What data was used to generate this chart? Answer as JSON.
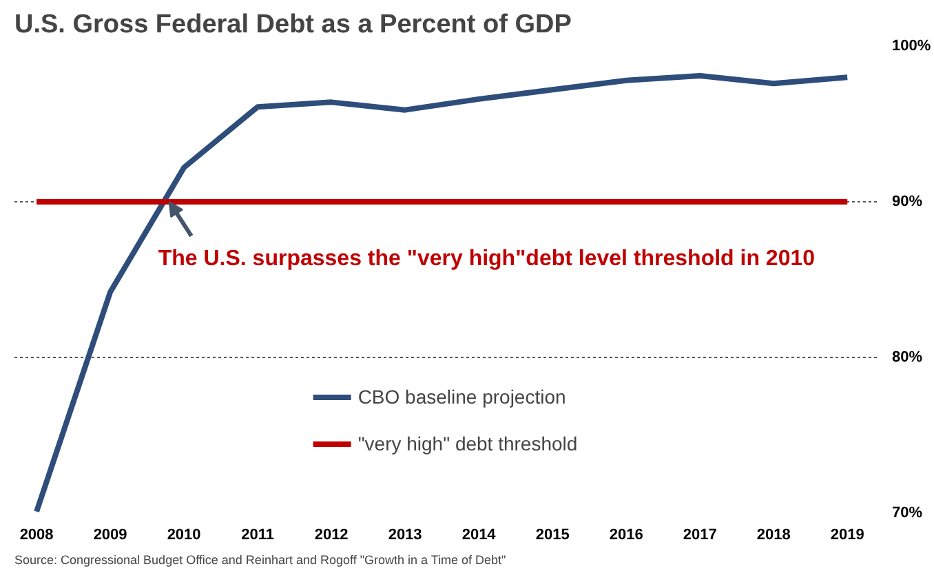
{
  "chart_data": {
    "type": "line",
    "title": "U.S. Gross Federal Debt as a Percent of GDP",
    "x": [
      2008,
      2009,
      2010,
      2011,
      2012,
      2013,
      2014,
      2015,
      2016,
      2017,
      2018,
      2019
    ],
    "series": [
      {
        "name": "CBO baseline projection",
        "color": "#2e4d7b",
        "values": [
          70.1,
          84.2,
          92.2,
          96.1,
          96.4,
          95.9,
          96.6,
          97.2,
          97.8,
          98.1,
          97.6,
          98.0
        ]
      },
      {
        "name": "\"very high\" debt threshold",
        "color": "#c00000",
        "values": [
          90,
          90,
          90,
          90,
          90,
          90,
          90,
          90,
          90,
          90,
          90,
          90
        ]
      }
    ],
    "xlim": [
      2007.7,
      2019.4
    ],
    "xticks": [
      2008,
      2009,
      2010,
      2011,
      2012,
      2013,
      2014,
      2015,
      2016,
      2017,
      2018,
      2019
    ],
    "ylim": [
      70,
      100
    ],
    "yticks": [
      {
        "value": 70,
        "label": "70%"
      },
      {
        "value": 80,
        "label": "80%"
      },
      {
        "value": 90,
        "label": "90%"
      },
      {
        "value": 100,
        "label": "100%"
      }
    ],
    "grid": "y",
    "legend": "bottom",
    "marker": "none",
    "line_style": "solid",
    "annotations": [
      {
        "text": "The U.S. surpasses the \"very high\"debt level threshold in 2010",
        "x": 2009.8,
        "y": 90
      },
      "Source: Congressional Budget Office and Reinhart and Rogoff \"Growth in a Time of Debt\""
    ]
  }
}
